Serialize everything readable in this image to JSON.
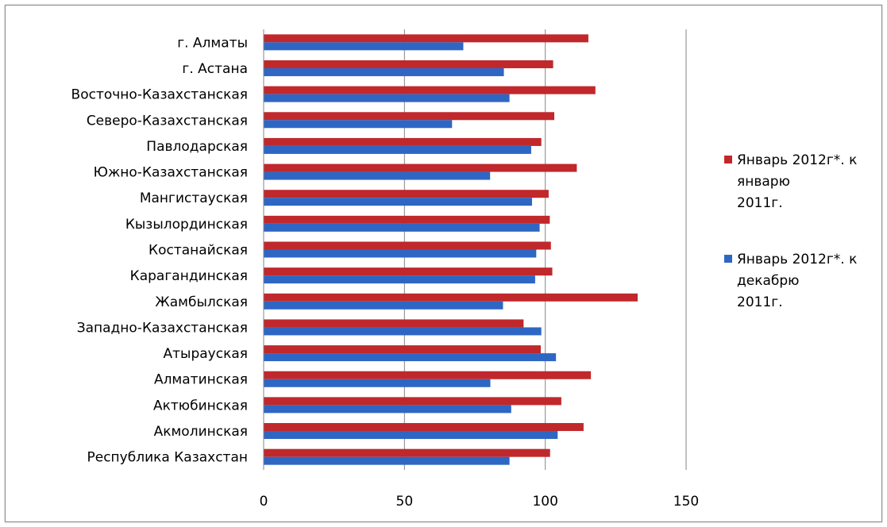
{
  "chart_data": {
    "type": "bar",
    "orientation": "horizontal",
    "categories": [
      "г. Алматы",
      "г. Астана",
      "Восточно-Казахстанская",
      "Северо-Казахстанская",
      "Павлодарская",
      "Южно-Казахстанская",
      "Мангистауская",
      "Кызылординская",
      "Костанайская",
      "Карагандинская",
      "Жамбылская",
      "Западно-Казахстанская",
      "Атырауская",
      "Алматинская",
      "Актюбинская",
      "Акмолинская",
      "Республика Казахстан"
    ],
    "series": [
      {
        "name": "Январь 2012г*.  к январю 2011г.",
        "legend_lines": [
          "Январь 2012г*.  к",
          "январю",
          "2011г."
        ],
        "color": "#c0282c",
        "values": [
          115.3,
          102.8,
          117.8,
          103.2,
          98.6,
          111.2,
          101.2,
          101.6,
          102.0,
          102.5,
          132.8,
          92.3,
          98.4,
          116.2,
          105.7,
          113.6,
          101.7
        ]
      },
      {
        "name": "Январь 2012г*.  к декабрю 2011г.",
        "legend_lines": [
          "Январь 2012г*.  к",
          "декабрю",
          "2011г."
        ],
        "color": "#2e66c3",
        "values": [
          70.9,
          85.3,
          87.3,
          66.9,
          95.0,
          80.4,
          95.3,
          98.0,
          96.8,
          96.4,
          85.0,
          98.6,
          103.8,
          80.5,
          87.9,
          104.4,
          87.3
        ]
      }
    ],
    "xlim": [
      0,
      150
    ],
    "xticks": [
      "0",
      "50",
      "100",
      "150"
    ],
    "grid": true,
    "legend_position": "right"
  }
}
